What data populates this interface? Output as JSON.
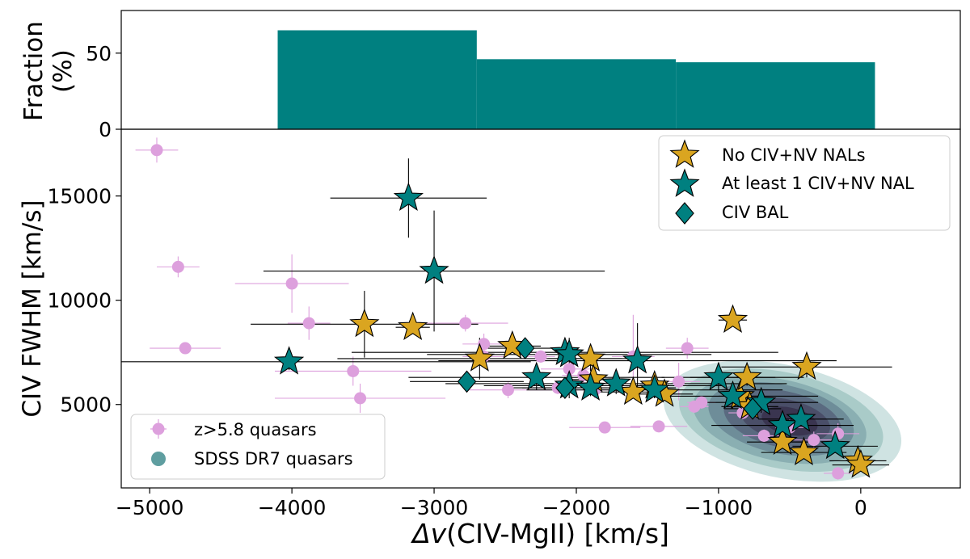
{
  "chart_data": [
    {
      "type": "bar",
      "panel": "top",
      "ylabel_lines": [
        "Fraction",
        "(%)"
      ],
      "xlim": [
        -5200,
        700
      ],
      "ylim": [
        0,
        78
      ],
      "yticks": [
        0,
        50
      ],
      "ytick_labels": [
        "0",
        "50"
      ],
      "bins": [
        {
          "x0": -4100,
          "x1": -2700,
          "value": 65
        },
        {
          "x0": -2700,
          "x1": -1300,
          "value": 46
        },
        {
          "x0": -1300,
          "x1": 100,
          "value": 44
        }
      ],
      "color": "#008080"
    },
    {
      "type": "scatter",
      "panel": "main",
      "xlabel": "Δv(CIV-MgII) [km/s]",
      "xlabel_italic": "Δv",
      "xlabel_rest": "(CIV-MgII) [km/s]",
      "ylabel": "CIV FWHM [km/s]",
      "xlim": [
        -5200,
        700
      ],
      "ylim": [
        1000,
        18200
      ],
      "xticks": [
        -5000,
        -4000,
        -3000,
        -2000,
        -1000,
        0
      ],
      "xtick_labels": [
        "−5000",
        "−4000",
        "−3000",
        "−2000",
        "−1000",
        "0"
      ],
      "yticks": [
        5000,
        10000,
        15000
      ],
      "ytick_labels": [
        "5000",
        "10000",
        "15000"
      ],
      "legend_top_right": [
        "No CIV+NV NALs",
        "At least 1 CIV+NV NAL",
        "CIV BAL"
      ],
      "legend_bottom_left": [
        "z>5.8 quasars",
        "SDSS DR7 quasars"
      ],
      "colors": {
        "no_nal": "#DAA520",
        "nal": "#008080",
        "bal": "#008080",
        "highz": "#DDA0DD",
        "sdss_fill": "#5F9EA0"
      },
      "density_levels": [
        {
          "cx": -550,
          "cy": 4200,
          "rx": 850,
          "ry": 2700,
          "fill": "#CFE3E2"
        },
        {
          "cx": -560,
          "cy": 4250,
          "rx": 730,
          "ry": 2300,
          "fill": "#A9CBC8"
        },
        {
          "cx": -570,
          "cy": 4250,
          "rx": 620,
          "ry": 1950,
          "fill": "#8AAFB2"
        },
        {
          "cx": -560,
          "cy": 4300,
          "rx": 520,
          "ry": 1650,
          "fill": "#6E8D99"
        },
        {
          "cx": -550,
          "cy": 4300,
          "rx": 420,
          "ry": 1350,
          "fill": "#5A6A80"
        },
        {
          "cx": -530,
          "cy": 4250,
          "rx": 320,
          "ry": 1000,
          "fill": "#4A4E68"
        },
        {
          "cx": -500,
          "cy": 4200,
          "rx": 200,
          "ry": 650,
          "fill": "#3A3550"
        }
      ],
      "series": [
        {
          "name": "z>5.8 quasars",
          "points": [
            [
              -4950,
              17200,
              150,
              600
            ],
            [
              -4800,
              11600,
              150,
              500
            ],
            [
              -4750,
              7700,
              250,
              200
            ],
            [
              -4000,
              10800,
              400,
              1400
            ],
            [
              -3880,
              8900,
              150,
              800
            ],
            [
              -3570,
              6600,
              550,
              700
            ],
            [
              -3520,
              5300,
              600,
              700
            ],
            [
              -2780,
              8900,
              300,
              400
            ],
            [
              -2650,
              7900,
              150,
              500
            ],
            [
              -2650,
              7300,
              150,
              400
            ],
            [
              -2480,
              5700,
              300,
              400
            ],
            [
              -2250,
              7300,
              100,
              300
            ],
            [
              -2130,
              5800,
              250,
              300
            ],
            [
              -2050,
              6700,
              200,
              300
            ],
            [
              -1950,
              6400,
              150,
              400
            ],
            [
              -1870,
              5700,
              200,
              400
            ],
            [
              -1800,
              3900,
              250,
              200
            ],
            [
              -1600,
              7300,
              150,
              2000
            ],
            [
              -1420,
              3950,
              200,
              200
            ],
            [
              -1280,
              6100,
              150,
              900
            ],
            [
              -1220,
              7700,
              150,
              500
            ],
            [
              -1170,
              4900,
              100,
              300
            ],
            [
              -1120,
              5100,
              100,
              300
            ],
            [
              -830,
              4600,
              100,
              300
            ],
            [
              -680,
              3500,
              150,
              300
            ],
            [
              -500,
              3900,
              100,
              400
            ],
            [
              -330,
              3300,
              150,
              400
            ],
            [
              -160,
              3600,
              150,
              500
            ],
            [
              -160,
              1700,
              100,
              300
            ]
          ]
        },
        {
          "name": "No CIV+NV NALs",
          "points": [
            [
              -3490,
              8850,
              800,
              1600
            ],
            [
              -3150,
              8700,
              120,
              300
            ],
            [
              -2680,
              7200,
              1000,
              1000
            ],
            [
              -2450,
              7800,
              200,
              300
            ],
            [
              -1900,
              7200,
              300,
              600
            ],
            [
              -1880,
              6200,
              200,
              500
            ],
            [
              -1600,
              5600,
              300,
              300
            ],
            [
              -1450,
              5900,
              500,
              600
            ],
            [
              -1380,
              5500,
              200,
              300
            ],
            [
              -900,
              9050,
              100,
              200
            ],
            [
              -850,
              5400,
              150,
              300
            ],
            [
              -800,
              6300,
              400,
              400
            ],
            [
              -780,
              4900,
              200,
              300
            ],
            [
              -550,
              3200,
              250,
              300
            ],
            [
              -380,
              6800,
              600,
              500
            ],
            [
              -400,
              2700,
              300,
              300
            ],
            [
              -20,
              2300,
              200,
              300
            ],
            [
              0,
              2100,
              200,
              300
            ]
          ]
        },
        {
          "name": "At least 1 CIV+NV NAL",
          "points": [
            [
              -3180,
              14900,
              550,
              1900
            ],
            [
              -3000,
              11400,
              1200,
              2900
            ],
            [
              -4020,
              7050,
              1700,
              400
            ],
            [
              -2080,
              7500,
              1500,
              400
            ],
            [
              -2050,
              7400,
              1000,
              800
            ],
            [
              -2280,
              6300,
              900,
              600
            ],
            [
              -2050,
              5900,
              600,
              600
            ],
            [
              -1720,
              6000,
              1200,
              500
            ],
            [
              -1570,
              7100,
              1400,
              1800
            ],
            [
              -1000,
              6300,
              400,
              700
            ],
            [
              -900,
              5400,
              600,
              600
            ],
            [
              -700,
              5100,
              400,
              500
            ],
            [
              -550,
              4000,
              500,
              500
            ],
            [
              -420,
              4300,
              300,
              300
            ],
            [
              -180,
              3000,
              300,
              300
            ],
            [
              -1450,
              5700,
              900,
              400
            ],
            [
              -1900,
              5800,
              600,
              400
            ]
          ]
        },
        {
          "name": "CIV BAL",
          "points": [
            [
              -2360,
              7700,
              300,
              400
            ],
            [
              -2770,
              6100,
              400,
              300
            ],
            [
              -2080,
              5800,
              300,
              300
            ],
            [
              -760,
              4800,
              200,
              300
            ]
          ]
        }
      ]
    }
  ]
}
